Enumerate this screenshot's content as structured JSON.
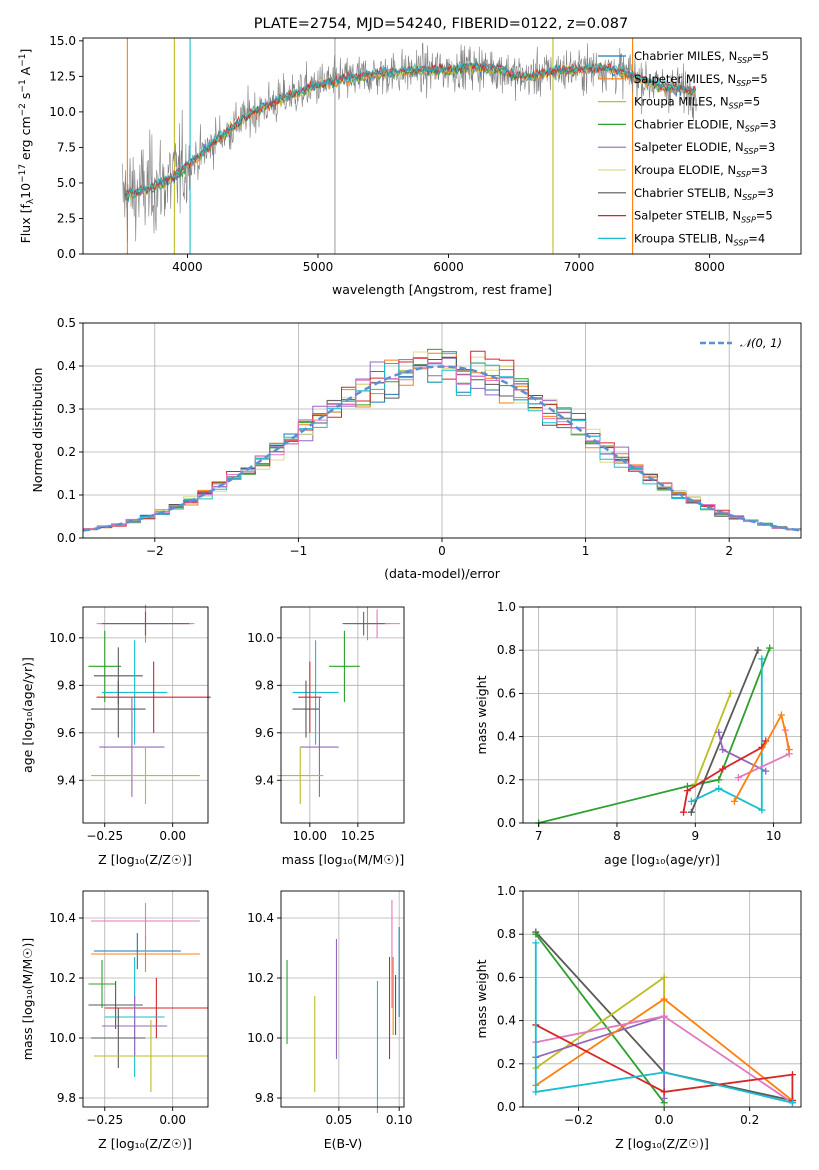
{
  "chart_data": [
    {
      "id": "spectrum",
      "type": "line",
      "title": "PLATE=2754, MJD=54240, FIBERID=0122, z=0.087",
      "xlabel": "wavelength [Angstrom, rest frame]",
      "ylabel_parts": [
        "Flux [f",
        "λ",
        "10",
        "−17",
        " erg cm",
        "−2",
        " s",
        "−1",
        " A",
        "−1",
        "]"
      ],
      "xlim": [
        3200,
        8700
      ],
      "ylim": [
        0,
        15.2
      ],
      "xticks": [
        "4000",
        "5000",
        "6000",
        "7000",
        "8000"
      ],
      "xtick_values": [
        4000,
        5000,
        6000,
        7000,
        8000
      ],
      "yticks": [
        "0.0",
        "2.5",
        "5.0",
        "7.5",
        "10.0",
        "12.5",
        "15.0"
      ],
      "ytick_values": [
        0,
        2.5,
        5,
        7.5,
        10,
        12.5,
        15
      ],
      "grid": false,
      "legend_position": "right",
      "spectrum_anchors": {
        "wavelength": [
          3500,
          3600,
          3700,
          3800,
          3900,
          4000,
          4100,
          4200,
          4300,
          4400,
          4500,
          4600,
          4800,
          5000,
          5200,
          5400,
          5600,
          5800,
          6000,
          6200,
          6400,
          6500,
          6600,
          6800,
          7000,
          7200,
          7400,
          7500,
          7600,
          7800,
          7900
        ],
        "flux": [
          4.1,
          4.3,
          4.6,
          5.0,
          5.4,
          6.2,
          7.0,
          7.9,
          8.6,
          9.3,
          10.0,
          10.4,
          11.2,
          11.9,
          12.3,
          12.6,
          12.8,
          12.9,
          13.0,
          13.2,
          13.0,
          12.6,
          12.4,
          12.9,
          13.0,
          13.1,
          12.6,
          12.2,
          11.8,
          11.6,
          11.4
        ]
      },
      "noise_amplitude": 1.5,
      "spikes": [
        {
          "x": 5130,
          "color": "#a3a3a3"
        },
        {
          "x": 6800,
          "color": "#bcbd22"
        },
        {
          "x": 7410,
          "color": "#ff7f0e"
        },
        {
          "x": 3540,
          "color": "#ff7f0e"
        },
        {
          "x": 4020,
          "color": "#17becf"
        },
        {
          "x": 3900,
          "color": "#bcbd22"
        }
      ],
      "series": [
        {
          "name": "Chabrier MILES",
          "nssp": "5",
          "color": "#1f77b4"
        },
        {
          "name": "Salpeter MILES",
          "nssp": "5",
          "color": "#ff7f0e"
        },
        {
          "name": "Kroupa MILES",
          "nssp": "5",
          "color": "#bcbd22"
        },
        {
          "name": "Chabrier ELODIE",
          "nssp": "3",
          "color": "#2ca02c"
        },
        {
          "name": "Salpeter ELODIE",
          "nssp": "3",
          "color": "#9467bd"
        },
        {
          "name": "Kroupa ELODIE",
          "nssp": "3",
          "color": "#dbdb8d"
        },
        {
          "name": "Chabrier STELIB",
          "nssp": "3",
          "color": "#595959"
        },
        {
          "name": "Salpeter STELIB",
          "nssp": "5",
          "color": "#d62728"
        },
        {
          "name": "Kroupa STELIB",
          "nssp": "4",
          "color": "#17becf"
        }
      ]
    },
    {
      "id": "residuals",
      "type": "step",
      "xlabel": "(data-model)/error",
      "ylabel": "Normed distribution",
      "xlim": [
        -2.5,
        2.5
      ],
      "ylim": [
        0,
        0.5
      ],
      "xticks": [
        "−2",
        "−1",
        "0",
        "1",
        "2"
      ],
      "xtick_values": [
        -2,
        -1,
        0,
        1,
        2
      ],
      "yticks": [
        "0.0",
        "0.1",
        "0.2",
        "0.3",
        "0.4",
        "0.5"
      ],
      "ytick_values": [
        0,
        0.1,
        0.2,
        0.3,
        0.4,
        0.5
      ],
      "grid": true,
      "legend_position": "top-right",
      "gaussian_label": "𝒩(0, 1)",
      "gaussian_color": "#5b8fd6",
      "bin_width": 0.1,
      "series_colors": [
        "#1f77b4",
        "#ff7f0e",
        "#2ca02c",
        "#9467bd",
        "#dbdb8d",
        "#595959",
        "#d62728",
        "#17becf",
        "#e377c2"
      ]
    },
    {
      "id": "age_vs_Z",
      "type": "errorbar",
      "xlabel": "Z [log₁₀(Z/Z☉)]",
      "ylabel": "age  [log₁₀(age/yr)]",
      "xlim": [
        -0.33,
        0.13
      ],
      "ylim": [
        9.22,
        10.13
      ],
      "xticks": [
        "−0.25",
        "0.00"
      ],
      "xtick_values": [
        -0.25,
        0
      ],
      "yticks": [
        "9.4",
        "9.6",
        "9.8",
        "10.0"
      ],
      "ytick_values": [
        9.4,
        9.6,
        9.8,
        10.0
      ],
      "points": [
        {
          "x": -0.1,
          "xerr": 0.17,
          "y": 10.06,
          "yerr": 0.08,
          "color": "#ff7f0e"
        },
        {
          "x": -0.1,
          "xerr": 0.18,
          "y": 10.06,
          "yerr": 0.06,
          "color": "#e377c2"
        },
        {
          "x": -0.1,
          "xerr": 0.16,
          "y": 10.06,
          "yerr": 0.05,
          "color": "#1f77b4"
        },
        {
          "x": -0.25,
          "xerr": 0.06,
          "y": 9.88,
          "yerr": 0.15,
          "color": "#2ca02c"
        },
        {
          "x": -0.2,
          "xerr": 0.09,
          "y": 9.84,
          "yerr": 0.12,
          "color": "#595959"
        },
        {
          "x": -0.14,
          "xerr": 0.12,
          "y": 9.77,
          "yerr": 0.22,
          "color": "#17becf"
        },
        {
          "x": -0.07,
          "xerr": 0.21,
          "y": 9.75,
          "yerr": 0.15,
          "color": "#d62728"
        },
        {
          "x": -0.2,
          "xerr": 0.1,
          "y": 9.7,
          "yerr": 0.12,
          "color": "#595959"
        },
        {
          "x": -0.15,
          "xerr": 0.12,
          "y": 9.54,
          "yerr": 0.21,
          "color": "#9467bd"
        },
        {
          "x": -0.1,
          "xerr": 0.2,
          "y": 9.42,
          "yerr": 0.12,
          "color": "#bcbd22"
        }
      ]
    },
    {
      "id": "age_vs_mass",
      "type": "errorbar",
      "xlabel": "mass [log₁₀(M/M☉)]",
      "xlim": [
        9.85,
        10.49
      ],
      "ylim": [
        9.22,
        10.13
      ],
      "xticks": [
        "10.00",
        "10.25"
      ],
      "xtick_values": [
        10.0,
        10.25
      ],
      "yticks": [
        "9.4",
        "9.6",
        "9.8",
        "10.0"
      ],
      "ytick_values": [
        9.4,
        9.6,
        9.8,
        10.0
      ],
      "points": [
        {
          "x": 10.3,
          "xerr": 0.12,
          "y": 10.06,
          "yerr": 0.07,
          "color": "#ff7f0e"
        },
        {
          "x": 10.35,
          "xerr": 0.12,
          "y": 10.06,
          "yerr": 0.06,
          "color": "#e377c2"
        },
        {
          "x": 10.28,
          "xerr": 0.11,
          "y": 10.06,
          "yerr": 0.05,
          "color": "#1f77b4"
        },
        {
          "x": 10.18,
          "xerr": 0.08,
          "y": 9.88,
          "yerr": 0.15,
          "color": "#2ca02c"
        },
        {
          "x": 10.03,
          "xerr": 0.12,
          "y": 9.77,
          "yerr": 0.22,
          "color": "#17becf"
        },
        {
          "x": 10.0,
          "xerr": 0.06,
          "y": 9.75,
          "yerr": 0.15,
          "color": "#d62728"
        },
        {
          "x": 9.98,
          "xerr": 0.07,
          "y": 9.7,
          "yerr": 0.12,
          "color": "#595959"
        },
        {
          "x": 10.05,
          "xerr": 0.1,
          "y": 9.54,
          "yerr": 0.21,
          "color": "#9467bd"
        },
        {
          "x": 9.95,
          "xerr": 0.12,
          "y": 9.42,
          "yerr": 0.12,
          "color": "#bcbd22"
        }
      ]
    },
    {
      "id": "mass_weight_vs_age",
      "type": "line",
      "xlabel": "age  [log₁₀(age/yr)]",
      "ylabel": "mass weight",
      "xlim": [
        6.8,
        10.35
      ],
      "ylim": [
        0,
        1
      ],
      "xticks": [
        "7",
        "8",
        "9",
        "10"
      ],
      "xtick_values": [
        7,
        8,
        9,
        10
      ],
      "yticks": [
        "0.0",
        "0.2",
        "0.4",
        "0.6",
        "0.8",
        "1.0"
      ],
      "ytick_values": [
        0,
        0.2,
        0.4,
        0.6,
        0.8,
        1.0
      ],
      "series": [
        {
          "color": "#2ca02c",
          "x": [
            7.0,
            8.9,
            9.3,
            9.95
          ],
          "y": [
            0.0,
            0.17,
            0.2,
            0.81
          ]
        },
        {
          "color": "#595959",
          "x": [
            8.95,
            9.8
          ],
          "y": [
            0.05,
            0.8
          ]
        },
        {
          "color": "#bcbd22",
          "x": [
            9.0,
            9.45
          ],
          "y": [
            0.18,
            0.6
          ]
        },
        {
          "color": "#9467bd",
          "x": [
            9.3,
            9.35,
            9.9
          ],
          "y": [
            0.42,
            0.34,
            0.24
          ]
        },
        {
          "color": "#17becf",
          "x": [
            8.95,
            9.3,
            9.85,
            9.85
          ],
          "y": [
            0.1,
            0.16,
            0.06,
            0.76
          ]
        },
        {
          "color": "#d62728",
          "x": [
            8.85,
            8.9,
            9.35,
            9.85,
            9.9
          ],
          "y": [
            0.05,
            0.15,
            0.25,
            0.35,
            0.38
          ]
        },
        {
          "color": "#e377c2",
          "x": [
            9.55,
            10.2,
            10.15
          ],
          "y": [
            0.21,
            0.32,
            0.43
          ]
        },
        {
          "color": "#ff7f0e",
          "x": [
            9.5,
            10.1,
            10.2
          ],
          "y": [
            0.1,
            0.5,
            0.34
          ]
        }
      ]
    },
    {
      "id": "mass_vs_Z",
      "type": "errorbar",
      "xlabel": "Z [log₁₀(Z/Z☉)]",
      "ylabel": "mass [log₁₀(M/M☉)]",
      "xlim": [
        -0.33,
        0.13
      ],
      "ylim": [
        9.77,
        10.49
      ],
      "xticks": [
        "−0.25",
        "0.00"
      ],
      "xtick_values": [
        -0.25,
        0
      ],
      "yticks": [
        "9.8",
        "10.0",
        "10.2",
        "10.4"
      ],
      "ytick_values": [
        9.8,
        10.0,
        10.2,
        10.4
      ],
      "points": [
        {
          "x": -0.1,
          "xerr": 0.2,
          "y": 10.39,
          "yerr": 0.06,
          "color": "#e377c2"
        },
        {
          "x": -0.13,
          "xerr": 0.16,
          "y": 10.29,
          "yerr": 0.06,
          "color": "#1f77b4"
        },
        {
          "x": -0.1,
          "xerr": 0.2,
          "y": 10.28,
          "yerr": 0.06,
          "color": "#ff7f0e"
        },
        {
          "x": -0.26,
          "xerr": 0.05,
          "y": 10.18,
          "yerr": 0.08,
          "color": "#2ca02c"
        },
        {
          "x": -0.21,
          "xerr": 0.1,
          "y": 10.11,
          "yerr": 0.08,
          "color": "#595959"
        },
        {
          "x": -0.06,
          "xerr": 0.19,
          "y": 10.1,
          "yerr": 0.1,
          "color": "#d62728"
        },
        {
          "x": -0.14,
          "xerr": 0.11,
          "y": 10.07,
          "yerr": 0.2,
          "color": "#17becf"
        },
        {
          "x": -0.14,
          "xerr": 0.12,
          "y": 10.04,
          "yerr": 0.1,
          "color": "#9467bd"
        },
        {
          "x": -0.2,
          "xerr": 0.1,
          "y": 10.0,
          "yerr": 0.1,
          "color": "#595959"
        },
        {
          "x": -0.08,
          "xerr": 0.21,
          "y": 9.94,
          "yerr": 0.12,
          "color": "#bcbd22"
        }
      ]
    },
    {
      "id": "mass_vs_EBV",
      "type": "errorbar",
      "xlabel": "E(B-V)",
      "xlim": [
        0.002,
        0.104
      ],
      "ylim": [
        9.77,
        10.49
      ],
      "xticks": [
        "0.05",
        "0.10"
      ],
      "xtick_values": [
        0.05,
        0.1
      ],
      "yticks": [
        "9.8",
        "10.0",
        "10.2",
        "10.4"
      ],
      "ytick_values": [
        9.8,
        10.0,
        10.2,
        10.4
      ],
      "points": [
        {
          "x": 0.007,
          "y": 10.12,
          "yerr": 0.14,
          "color": "#2ca02c"
        },
        {
          "x": 0.03,
          "y": 9.98,
          "yerr": 0.16,
          "color": "#bcbd22"
        },
        {
          "x": 0.048,
          "y": 10.13,
          "yerr": 0.2,
          "color": "#9467bd"
        },
        {
          "x": 0.082,
          "y": 9.97,
          "yerr": 0.22,
          "color": "#17becf"
        },
        {
          "x": 0.092,
          "y": 10.1,
          "yerr": 0.17,
          "color": "#d62728"
        },
        {
          "x": 0.094,
          "y": 10.28,
          "yerr": 0.18,
          "color": "#e377c2"
        },
        {
          "x": 0.095,
          "y": 10.14,
          "yerr": 0.13,
          "color": "#ff7f0e"
        },
        {
          "x": 0.097,
          "y": 10.11,
          "yerr": 0.1,
          "color": "#595959"
        },
        {
          "x": 0.1,
          "y": 10.22,
          "yerr": 0.15,
          "color": "#1f77b4"
        }
      ]
    },
    {
      "id": "mass_weight_vs_Z",
      "type": "line",
      "xlabel": "Z [log₁₀(Z/Z☉)]",
      "ylabel": "mass weight",
      "xlim": [
        -0.33,
        0.32
      ],
      "ylim": [
        0,
        1
      ],
      "xticks": [
        "−0.2",
        "0.0",
        "0.2"
      ],
      "xtick_values": [
        -0.2,
        0,
        0.2
      ],
      "yticks": [
        "0.0",
        "0.2",
        "0.4",
        "0.6",
        "0.8",
        "1.0"
      ],
      "ytick_values": [
        0,
        0.2,
        0.4,
        0.6,
        0.8,
        1.0
      ],
      "series": [
        {
          "color": "#595959",
          "x": [
            -0.3,
            0.0,
            0.3
          ],
          "y": [
            0.81,
            0.16,
            0.03
          ]
        },
        {
          "color": "#2ca02c",
          "x": [
            -0.3,
            0.0
          ],
          "y": [
            0.8,
            0.02
          ]
        },
        {
          "color": "#bcbd22",
          "x": [
            -0.3,
            0.0,
            0.0
          ],
          "y": [
            0.18,
            0.6,
            0.16
          ]
        },
        {
          "color": "#9467bd",
          "x": [
            -0.3,
            0.0,
            0.0
          ],
          "y": [
            0.23,
            0.42,
            0.04
          ]
        },
        {
          "color": "#ff7f0e",
          "x": [
            -0.3,
            0.0,
            0.3,
            0.3
          ],
          "y": [
            0.1,
            0.5,
            0.03,
            0.02
          ]
        },
        {
          "color": "#e377c2",
          "x": [
            -0.3,
            0.0,
            0.3
          ],
          "y": [
            0.3,
            0.42,
            0.02
          ]
        },
        {
          "color": "#d62728",
          "x": [
            -0.3,
            0.0,
            0.3,
            0.3
          ],
          "y": [
            0.38,
            0.07,
            0.15,
            0.03
          ]
        },
        {
          "color": "#17becf",
          "x": [
            -0.3,
            -0.3,
            0.0,
            0.3
          ],
          "y": [
            0.76,
            0.07,
            0.16,
            0.02
          ]
        }
      ]
    }
  ]
}
